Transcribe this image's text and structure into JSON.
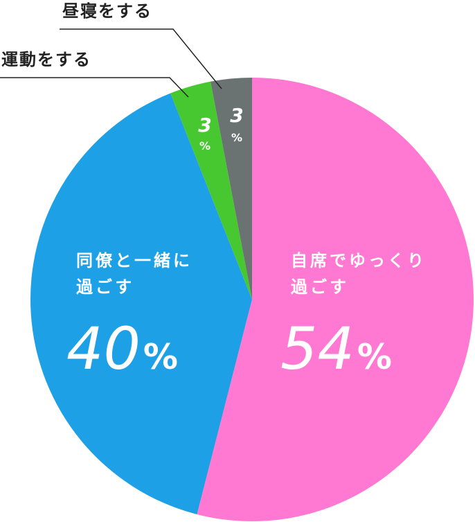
{
  "chart_data": {
    "type": "pie",
    "start_angle_deg": -90,
    "direction": "clockwise",
    "slices": [
      {
        "label_lines": [
          "自席でゆっくり",
          "過ごす"
        ],
        "value": 54,
        "percent_num": "54",
        "percent_sign": "%",
        "color": "#ff78d2",
        "label_pos": "inside"
      },
      {
        "label_lines": [
          "同僚と一緒に",
          "過ごす"
        ],
        "value": 40,
        "percent_num": "40",
        "percent_sign": "%",
        "color": "#1ea0e6",
        "label_pos": "inside"
      },
      {
        "label": "運動をする",
        "value": 3,
        "percent_num": "3",
        "percent_sign": "%",
        "color": "#48c830",
        "label_pos": "outside"
      },
      {
        "label": "昼寝をする",
        "value": 3,
        "percent_num": "3",
        "percent_sign": "%",
        "color": "#6b7272",
        "label_pos": "outside"
      }
    ]
  }
}
